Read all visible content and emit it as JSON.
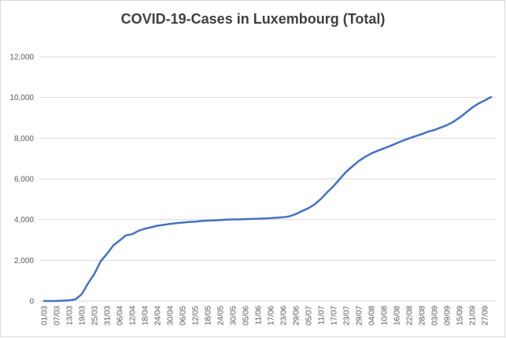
{
  "chart_data": {
    "type": "line",
    "title": "COVID-19-Cases in Luxembourg (Total)",
    "xlabel": "",
    "ylabel": "",
    "ylim": [
      0,
      12000
    ],
    "y_ticks": [
      0,
      2000,
      4000,
      6000,
      8000,
      10000,
      12000
    ],
    "y_tick_labels": [
      "0",
      "2,000",
      "4,000",
      "6,000",
      "8,000",
      "10,000",
      "12,000"
    ],
    "x_tick_labels": [
      "01/03",
      "07/03",
      "13/03",
      "19/03",
      "25/03",
      "31/03",
      "06/04",
      "12/04",
      "18/04",
      "24/04",
      "30/04",
      "06/05",
      "12/05",
      "18/05",
      "24/05",
      "30/05",
      "05/06",
      "11/06",
      "17/06",
      "23/06",
      "29/06",
      "05/07",
      "11/07",
      "17/07",
      "23/07",
      "29/07",
      "04/08",
      "10/08",
      "16/08",
      "22/08",
      "28/08",
      "03/09",
      "09/09",
      "15/09",
      "21/09",
      "27/09"
    ],
    "grid": true,
    "legend": "none",
    "line_color": "#4472C4",
    "series": [
      {
        "x": [
          "01/03",
          "07/03",
          "13/03",
          "16/03",
          "19/03",
          "22/03",
          "25/03",
          "28/03",
          "31/03",
          "03/04",
          "06/04",
          "09/04",
          "12/04",
          "15/04",
          "18/04",
          "21/04",
          "24/04",
          "27/04",
          "30/04",
          "03/05",
          "06/05",
          "09/05",
          "12/05",
          "15/05",
          "18/05",
          "21/05",
          "24/05",
          "27/05",
          "30/05",
          "02/06",
          "05/06",
          "08/06",
          "11/06",
          "14/06",
          "17/06",
          "20/06",
          "23/06",
          "26/06",
          "29/06",
          "02/07",
          "05/07",
          "08/07",
          "11/07",
          "14/07",
          "17/07",
          "20/07",
          "23/07",
          "26/07",
          "29/07",
          "01/08",
          "04/08",
          "07/08",
          "10/08",
          "13/08",
          "16/08",
          "19/08",
          "22/08",
          "25/08",
          "28/08",
          "31/08",
          "03/09",
          "06/09",
          "09/09",
          "12/09",
          "15/09",
          "18/09",
          "21/09",
          "24/09",
          "27/09",
          "30/09"
        ],
        "values": [
          0,
          0,
          26,
          81,
          335,
          875,
          1333,
          1950,
          2319,
          2729,
          2970,
          3223,
          3281,
          3444,
          3550,
          3618,
          3695,
          3741,
          3784,
          3820,
          3850,
          3877,
          3900,
          3930,
          3947,
          3960,
          3980,
          3993,
          4005,
          4012,
          4020,
          4030,
          4040,
          4052,
          4070,
          4090,
          4110,
          4160,
          4270,
          4420,
          4560,
          4750,
          5020,
          5350,
          5650,
          6000,
          6350,
          6620,
          6880,
          7080,
          7250,
          7380,
          7500,
          7620,
          7750,
          7880,
          7990,
          8100,
          8200,
          8320,
          8400,
          8520,
          8640,
          8800,
          9010,
          9250,
          9500,
          9700,
          9850,
          10020
        ]
      }
    ]
  }
}
